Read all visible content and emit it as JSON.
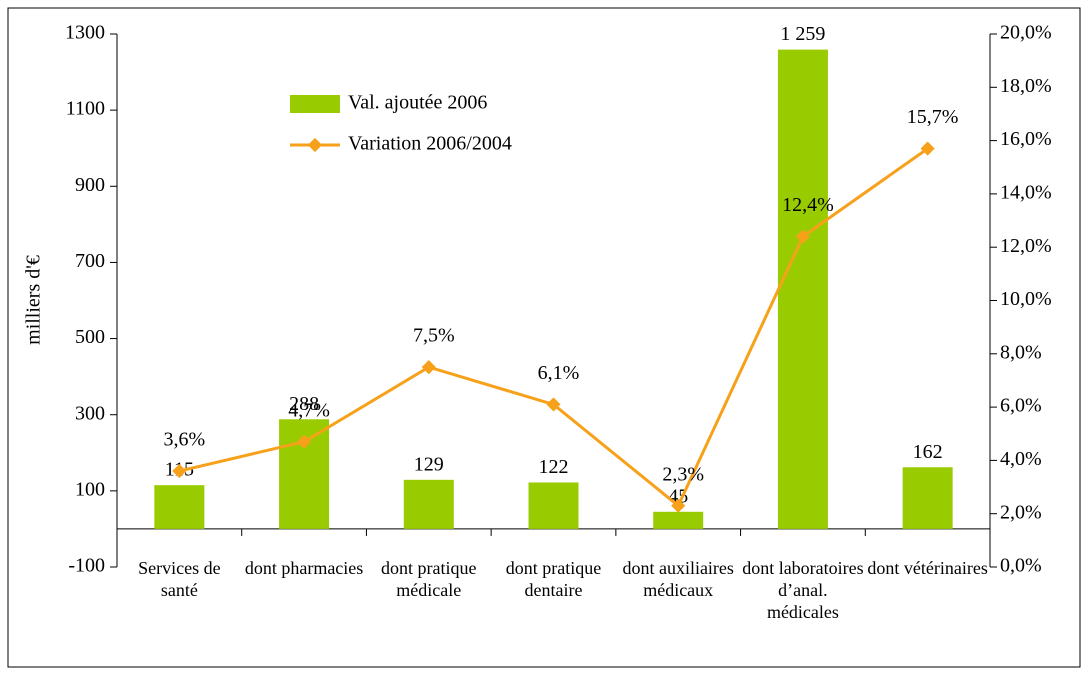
{
  "chart_data": {
    "type": "bar_line",
    "y_label": "milliers d'€",
    "categories": [
      "Services de santé",
      "dont pharmacies",
      "dont pratique médicale",
      "dont pratique dentaire",
      "dont auxiliaires médicaux",
      "dont laboratoires d’anal. médicales",
      "dont vétérinaires"
    ],
    "series": [
      {
        "name": "Val. ajoutée 2006",
        "type": "bar",
        "color": "#99cc00",
        "values": [
          115,
          288,
          129,
          122,
          45,
          1259,
          162
        ],
        "value_labels": [
          "115",
          "288",
          "129",
          "122",
          "45",
          "1 259",
          "162"
        ]
      },
      {
        "name": "Variation 2006/2004",
        "type": "line",
        "axis": "y2",
        "color": "#f7a11a",
        "values": [
          3.6,
          4.7,
          7.5,
          6.1,
          2.3,
          12.4,
          15.7
        ],
        "value_labels": [
          "3,6%",
          "4,7%",
          "7,5%",
          "6,1%",
          "2,3%",
          "12,4%",
          "15,7%"
        ]
      }
    ],
    "ylim": [
      -100,
      1300
    ],
    "yticks": [
      -100,
      100,
      300,
      500,
      700,
      900,
      1100,
      1300
    ],
    "y2lim": [
      0,
      20
    ],
    "y2ticks": [
      {
        "value": 0,
        "label": "0,0%"
      },
      {
        "value": 2,
        "label": "2,0%"
      },
      {
        "value": 4,
        "label": "4,0%"
      },
      {
        "value": 6,
        "label": "6,0%"
      },
      {
        "value": 8,
        "label": "8,0%"
      },
      {
        "value": 10,
        "label": "10,0%"
      },
      {
        "value": 12,
        "label": "12,0%"
      },
      {
        "value": 14,
        "label": "14,0%"
      },
      {
        "value": 16,
        "label": "16,0%"
      },
      {
        "value": 18,
        "label": "18,0%"
      },
      {
        "value": 20,
        "label": "20,0%"
      }
    ]
  }
}
